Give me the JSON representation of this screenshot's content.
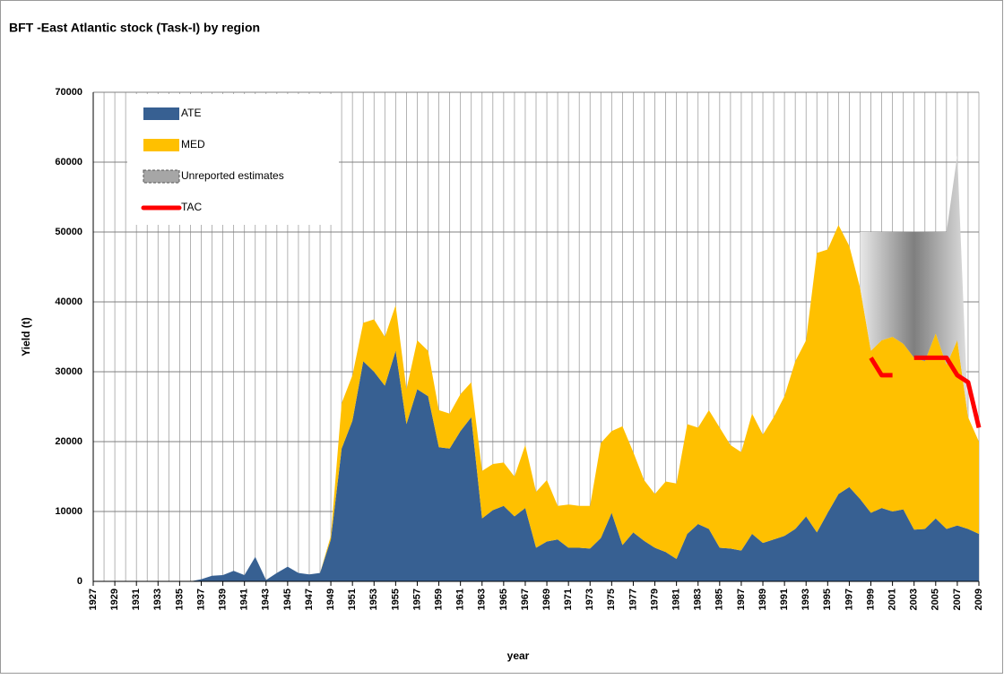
{
  "chart_data": {
    "type": "area",
    "title": "BFT -East Atlantic stock  (Task-I)  by region",
    "x_label": "year",
    "y_label": "Yield (t)",
    "x": [
      1927,
      1928,
      1929,
      1930,
      1931,
      1932,
      1933,
      1934,
      1935,
      1936,
      1937,
      1938,
      1939,
      1940,
      1941,
      1942,
      1943,
      1944,
      1945,
      1946,
      1947,
      1948,
      1949,
      1950,
      1951,
      1952,
      1953,
      1954,
      1955,
      1956,
      1957,
      1958,
      1959,
      1960,
      1961,
      1962,
      1963,
      1964,
      1965,
      1966,
      1967,
      1968,
      1969,
      1970,
      1971,
      1972,
      1973,
      1974,
      1975,
      1976,
      1977,
      1978,
      1979,
      1980,
      1981,
      1982,
      1983,
      1984,
      1985,
      1986,
      1987,
      1988,
      1989,
      1990,
      1991,
      1992,
      1993,
      1994,
      1995,
      1996,
      1997,
      1998,
      1999,
      2000,
      2001,
      2002,
      2003,
      2004,
      2005,
      2006,
      2007,
      2008,
      2009
    ],
    "xlim": [
      1927,
      2009
    ],
    "xticks": [
      1927,
      1929,
      1931,
      1933,
      1935,
      1937,
      1939,
      1941,
      1943,
      1945,
      1947,
      1949,
      1951,
      1953,
      1955,
      1957,
      1959,
      1961,
      1963,
      1965,
      1967,
      1969,
      1971,
      1973,
      1975,
      1977,
      1979,
      1981,
      1983,
      1985,
      1987,
      1989,
      1991,
      1993,
      1995,
      1997,
      1999,
      2001,
      2003,
      2005,
      2007,
      2009
    ],
    "ylim": [
      0,
      70000
    ],
    "yticks": [
      0,
      10000,
      20000,
      30000,
      40000,
      50000,
      60000,
      70000
    ],
    "grid": true,
    "legend": "upper left",
    "series": [
      {
        "name": "ATE",
        "color": "#376092",
        "type": "area",
        "values": [
          0,
          0,
          0,
          0,
          0,
          0,
          0,
          0,
          0,
          0,
          300,
          800,
          900,
          1500,
          900,
          3500,
          200,
          1200,
          2100,
          1200,
          1000,
          1200,
          6000,
          19000,
          23000,
          31500,
          30000,
          28000,
          33000,
          22500,
          27500,
          26500,
          19200,
          19000,
          21500,
          23500,
          9000,
          10200,
          10800,
          9300,
          10500,
          4800,
          5700,
          6000,
          4800,
          4800,
          4700,
          6200,
          9800,
          5200,
          7000,
          5800,
          4800,
          4200,
          3200,
          6800,
          8200,
          7500,
          4800,
          4700,
          4400,
          6800,
          5500,
          6000,
          6500,
          7500,
          9300,
          7000,
          9800,
          12500,
          13500,
          11800,
          9800,
          10500,
          10000,
          10300,
          7400,
          7500,
          9000,
          7500,
          8000,
          7500,
          6800
        ]
      },
      {
        "name": "MED",
        "color": "#ffc000",
        "type": "area",
        "values": [
          0,
          0,
          0,
          0,
          0,
          0,
          0,
          0,
          0,
          0,
          0,
          0,
          0,
          0,
          0,
          0,
          0,
          0,
          0,
          0,
          0,
          0,
          500,
          6500,
          6500,
          5500,
          7500,
          7000,
          6500,
          5000,
          7000,
          6500,
          5300,
          5000,
          5300,
          5000,
          6800,
          6600,
          6200,
          5700,
          9000,
          8000,
          8800,
          4800,
          6200,
          6000,
          6100,
          13600,
          11700,
          17000,
          11500,
          8700,
          7700,
          10100,
          10800,
          15700,
          13800,
          17000,
          17200,
          14800,
          14100,
          17200,
          15500,
          17500,
          20000,
          24000,
          25200,
          40000,
          37700,
          38500,
          34500,
          30200,
          23200,
          24000,
          25000,
          23700,
          24600,
          24000,
          26500,
          23500,
          26500,
          16000,
          13200
        ]
      },
      {
        "name": "Unreported estimates",
        "color": "#a6a6a6",
        "type": "area",
        "values": [
          null,
          null,
          null,
          null,
          null,
          null,
          null,
          null,
          null,
          null,
          null,
          null,
          null,
          null,
          null,
          null,
          null,
          null,
          null,
          null,
          null,
          null,
          null,
          null,
          null,
          null,
          null,
          null,
          null,
          null,
          null,
          null,
          null,
          null,
          null,
          null,
          null,
          null,
          null,
          null,
          null,
          null,
          null,
          null,
          null,
          null,
          null,
          null,
          null,
          null,
          null,
          null,
          null,
          null,
          null,
          null,
          null,
          null,
          null,
          null,
          null,
          null,
          null,
          null,
          null,
          null,
          null,
          null,
          null,
          null,
          null,
          8000,
          17000,
          15500,
          15000,
          16000,
          18000,
          18500,
          14500,
          19000,
          26500,
          0,
          null
        ]
      },
      {
        "name": "TAC",
        "color": "#ff0000",
        "type": "line",
        "values": [
          null,
          null,
          null,
          null,
          null,
          null,
          null,
          null,
          null,
          null,
          null,
          null,
          null,
          null,
          null,
          null,
          null,
          null,
          null,
          null,
          null,
          null,
          null,
          null,
          null,
          null,
          null,
          null,
          null,
          null,
          null,
          null,
          null,
          null,
          null,
          null,
          null,
          null,
          null,
          null,
          null,
          null,
          null,
          null,
          null,
          null,
          null,
          null,
          null,
          null,
          null,
          null,
          null,
          null,
          null,
          null,
          null,
          null,
          null,
          null,
          null,
          null,
          null,
          null,
          null,
          null,
          null,
          null,
          null,
          null,
          null,
          null,
          32000,
          29500,
          29500,
          null,
          32000,
          32000,
          32000,
          32000,
          29500,
          28500,
          22000
        ]
      }
    ]
  }
}
